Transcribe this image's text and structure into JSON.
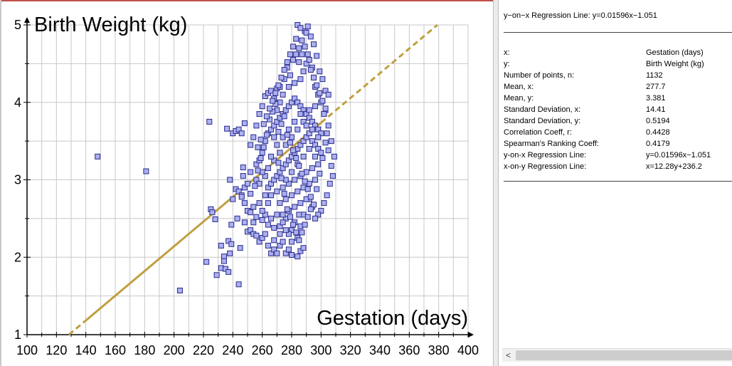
{
  "chart_data": {
    "type": "scatter",
    "xlabel": "Gestation (days)",
    "ylabel": "Birth Weight (kg)",
    "xlim": [
      100,
      400
    ],
    "ylim": [
      1,
      5
    ],
    "x_ticks": [
      "100",
      "120",
      "140",
      "160",
      "180",
      "200",
      "220",
      "240",
      "260",
      "280",
      "300",
      "320",
      "340",
      "360",
      "380",
      "400"
    ],
    "y_ticks": [
      "1",
      "2",
      "3",
      "4",
      "5"
    ],
    "grid": true,
    "marker_color": "#aab0f0",
    "marker_edge": "#2a2a8a",
    "line_color": "#bfa040",
    "regression": {
      "slope": 0.01596,
      "intercept": -1.051,
      "label": "y=0.01596x−1.051"
    },
    "points": [
      [
        148,
        3.3
      ],
      [
        181,
        3.11
      ],
      [
        204,
        1.57
      ],
      [
        224,
        3.75
      ],
      [
        225,
        2.62
      ],
      [
        226,
        2.58
      ],
      [
        222,
        1.94
      ],
      [
        228,
        2.49
      ],
      [
        229,
        1.77
      ],
      [
        232,
        1.86
      ],
      [
        234,
        2.01
      ],
      [
        232,
        2.15
      ],
      [
        235,
        1.85
      ],
      [
        237,
        1.81
      ],
      [
        237,
        2.21
      ],
      [
        239,
        2.17
      ],
      [
        238,
        2.05
      ],
      [
        234,
        1.95
      ],
      [
        244,
        1.65
      ],
      [
        245,
        2.12
      ],
      [
        236,
        3.66
      ],
      [
        240,
        3.6
      ],
      [
        242,
        3.63
      ],
      [
        244,
        3.65
      ],
      [
        246,
        3.6
      ],
      [
        248,
        3.73
      ],
      [
        247,
        3.16
      ],
      [
        247,
        3.05
      ],
      [
        238,
        3.0
      ],
      [
        240,
        2.75
      ],
      [
        242,
        2.88
      ],
      [
        244,
        2.85
      ],
      [
        246,
        2.8
      ],
      [
        248,
        2.9
      ],
      [
        250,
        2.95
      ],
      [
        252,
        3.1
      ],
      [
        239,
        2.42
      ],
      [
        243,
        2.5
      ],
      [
        248,
        2.45
      ],
      [
        250,
        2.33
      ],
      [
        252,
        2.35
      ],
      [
        254,
        2.3
      ],
      [
        256,
        2.28
      ],
      [
        254,
        2.45
      ],
      [
        258,
        2.2
      ],
      [
        260,
        2.25
      ],
      [
        262,
        2.3
      ],
      [
        264,
        2.15
      ],
      [
        266,
        2.05
      ],
      [
        268,
        2.1
      ],
      [
        270,
        2.05
      ],
      [
        272,
        2.15
      ],
      [
        274,
        2.2
      ],
      [
        276,
        2.05
      ],
      [
        278,
        2.1
      ],
      [
        280,
        2.03
      ],
      [
        284,
        2.01
      ],
      [
        286,
        2.08
      ],
      [
        288,
        2.12
      ],
      [
        268,
        2.22
      ],
      [
        272,
        2.4
      ],
      [
        276,
        2.5
      ],
      [
        280,
        2.35
      ],
      [
        284,
        2.25
      ],
      [
        286,
        2.4
      ],
      [
        288,
        2.55
      ],
      [
        262,
        2.55
      ],
      [
        258,
        2.7
      ],
      [
        254,
        2.65
      ],
      [
        250,
        2.6
      ],
      [
        252,
        3.45
      ],
      [
        254,
        3.55
      ],
      [
        256,
        3.7
      ],
      [
        258,
        3.85
      ],
      [
        260,
        3.95
      ],
      [
        262,
        4.08
      ],
      [
        264,
        4.12
      ],
      [
        266,
        4.15
      ],
      [
        268,
        4.05
      ],
      [
        270,
        4.18
      ],
      [
        272,
        4.2
      ],
      [
        275,
        4.3
      ],
      [
        277,
        4.45
      ],
      [
        279,
        4.35
      ],
      [
        281,
        4.55
      ],
      [
        283,
        4.62
      ],
      [
        285,
        4.7
      ],
      [
        287,
        4.8
      ],
      [
        289,
        4.92
      ],
      [
        291,
        4.98
      ],
      [
        284,
        5.0
      ],
      [
        286,
        4.96
      ],
      [
        290,
        4.9
      ],
      [
        293,
        4.85
      ],
      [
        295,
        4.75
      ],
      [
        297,
        4.6
      ],
      [
        299,
        4.4
      ],
      [
        301,
        4.3
      ],
      [
        303,
        4.15
      ],
      [
        305,
        4.1
      ],
      [
        303,
        3.9
      ],
      [
        305,
        3.7
      ],
      [
        307,
        3.5
      ],
      [
        309,
        3.3
      ],
      [
        308,
        3.05
      ],
      [
        306,
        2.95
      ],
      [
        304,
        2.8
      ],
      [
        302,
        2.7
      ],
      [
        300,
        2.6
      ],
      [
        298,
        2.55
      ],
      [
        296,
        2.5
      ],
      [
        294,
        2.65
      ],
      [
        292,
        2.75
      ],
      [
        256,
        3.2
      ],
      [
        258,
        3.25
      ],
      [
        260,
        3.35
      ],
      [
        262,
        3.5
      ],
      [
        264,
        3.6
      ],
      [
        266,
        3.65
      ],
      [
        268,
        3.7
      ],
      [
        270,
        3.75
      ],
      [
        272,
        3.8
      ],
      [
        274,
        3.85
      ],
      [
        276,
        3.9
      ],
      [
        278,
        3.95
      ],
      [
        280,
        4.0
      ],
      [
        282,
        4.05
      ],
      [
        284,
        4.0
      ],
      [
        286,
        3.95
      ],
      [
        288,
        3.9
      ],
      [
        290,
        3.85
      ],
      [
        292,
        3.8
      ],
      [
        294,
        3.75
      ],
      [
        296,
        3.7
      ],
      [
        298,
        3.65
      ],
      [
        300,
        3.6
      ],
      [
        264,
        2.9
      ],
      [
        266,
        2.95
      ],
      [
        268,
        3.0
      ],
      [
        270,
        3.05
      ],
      [
        272,
        3.1
      ],
      [
        274,
        3.15
      ],
      [
        276,
        3.2
      ],
      [
        278,
        3.25
      ],
      [
        280,
        3.3
      ],
      [
        282,
        3.35
      ],
      [
        284,
        3.4
      ],
      [
        286,
        3.45
      ],
      [
        288,
        3.5
      ],
      [
        290,
        3.55
      ],
      [
        292,
        3.6
      ],
      [
        294,
        3.5
      ],
      [
        296,
        3.45
      ],
      [
        298,
        3.4
      ],
      [
        300,
        3.35
      ],
      [
        266,
        2.8
      ],
      [
        270,
        2.85
      ],
      [
        274,
        2.9
      ],
      [
        278,
        2.95
      ],
      [
        282,
        3.0
      ],
      [
        286,
        3.05
      ],
      [
        290,
        3.1
      ],
      [
        294,
        3.15
      ],
      [
        298,
        3.2
      ],
      [
        262,
        3.05
      ],
      [
        264,
        3.15
      ],
      [
        268,
        3.25
      ],
      [
        272,
        3.35
      ],
      [
        276,
        3.45
      ],
      [
        280,
        3.55
      ],
      [
        284,
        3.65
      ],
      [
        288,
        3.75
      ],
      [
        292,
        3.9
      ],
      [
        296,
        3.95
      ],
      [
        270,
        3.45
      ],
      [
        274,
        3.55
      ],
      [
        278,
        3.65
      ],
      [
        282,
        3.75
      ],
      [
        286,
        3.85
      ],
      [
        290,
        3.7
      ],
      [
        294,
        3.65
      ],
      [
        298,
        3.55
      ],
      [
        276,
        3.0
      ],
      [
        280,
        3.1
      ],
      [
        284,
        3.2
      ],
      [
        288,
        3.3
      ],
      [
        292,
        3.4
      ],
      [
        296,
        3.3
      ],
      [
        272,
        2.7
      ],
      [
        276,
        2.75
      ],
      [
        280,
        2.8
      ],
      [
        284,
        2.85
      ],
      [
        288,
        2.9
      ],
      [
        292,
        2.95
      ],
      [
        296,
        3.0
      ],
      [
        278,
        2.6
      ],
      [
        282,
        2.65
      ],
      [
        286,
        2.7
      ],
      [
        290,
        2.75
      ],
      [
        274,
        2.55
      ],
      [
        266,
        3.3
      ],
      [
        268,
        3.55
      ],
      [
        270,
        3.9
      ],
      [
        272,
        4.0
      ],
      [
        274,
        4.1
      ],
      [
        278,
        4.2
      ],
      [
        282,
        4.25
      ],
      [
        286,
        4.3
      ],
      [
        288,
        4.4
      ],
      [
        290,
        4.5
      ],
      [
        292,
        4.55
      ],
      [
        294,
        4.45
      ],
      [
        296,
        4.2
      ],
      [
        298,
        4.1
      ],
      [
        300,
        4.0
      ],
      [
        302,
        3.85
      ],
      [
        304,
        3.6
      ],
      [
        256,
        3.0
      ],
      [
        258,
        2.95
      ],
      [
        260,
        3.1
      ],
      [
        262,
        2.8
      ],
      [
        264,
        2.7
      ],
      [
        260,
        2.6
      ],
      [
        266,
        2.5
      ],
      [
        270,
        2.55
      ],
      [
        274,
        2.45
      ],
      [
        278,
        2.3
      ],
      [
        282,
        2.45
      ],
      [
        285,
        2.55
      ],
      [
        280,
        2.2
      ],
      [
        276,
        2.35
      ],
      [
        272,
        2.3
      ],
      [
        268,
        2.38
      ],
      [
        264,
        2.42
      ],
      [
        260,
        2.48
      ],
      [
        256,
        2.52
      ],
      [
        252,
        2.58
      ],
      [
        248,
        2.7
      ],
      [
        246,
        2.78
      ],
      [
        252,
        2.82
      ],
      [
        255,
        2.92
      ],
      [
        257,
        3.12
      ],
      [
        259,
        3.28
      ],
      [
        261,
        3.42
      ],
      [
        263,
        3.58
      ],
      [
        265,
        3.78
      ],
      [
        267,
        3.88
      ],
      [
        269,
        3.98
      ],
      [
        271,
        3.62
      ],
      [
        273,
        3.72
      ],
      [
        275,
        3.82
      ],
      [
        277,
        3.58
      ],
      [
        279,
        3.48
      ],
      [
        281,
        3.38
      ],
      [
        283,
        3.28
      ],
      [
        285,
        3.18
      ],
      [
        287,
        3.08
      ],
      [
        289,
        2.98
      ],
      [
        291,
        2.88
      ],
      [
        293,
        2.78
      ],
      [
        295,
        2.68
      ],
      [
        297,
        2.88
      ],
      [
        299,
        3.08
      ],
      [
        301,
        3.28
      ],
      [
        303,
        3.48
      ],
      [
        305,
        3.38
      ],
      [
        307,
        3.18
      ],
      [
        261,
        3.72
      ],
      [
        263,
        3.82
      ],
      [
        265,
        3.92
      ],
      [
        267,
        4.02
      ],
      [
        269,
        4.12
      ],
      [
        271,
        4.22
      ],
      [
        273,
        4.32
      ],
      [
        275,
        4.42
      ],
      [
        277,
        4.52
      ],
      [
        279,
        4.62
      ],
      [
        281,
        4.72
      ],
      [
        283,
        4.82
      ],
      [
        285,
        4.52
      ],
      [
        287,
        4.62
      ],
      [
        289,
        4.72
      ],
      [
        291,
        4.62
      ],
      [
        293,
        4.42
      ],
      [
        295,
        4.32
      ],
      [
        297,
        4.22
      ],
      [
        299,
        4.12
      ],
      [
        301,
        4.02
      ],
      [
        303,
        3.92
      ],
      [
        257,
        3.42
      ],
      [
        259,
        3.52
      ],
      [
        271,
        3.22
      ],
      [
        273,
        3.02
      ],
      [
        275,
        2.82
      ],
      [
        277,
        2.62
      ],
      [
        279,
        2.52
      ],
      [
        281,
        2.42
      ],
      [
        283,
        2.32
      ],
      [
        285,
        2.22
      ],
      [
        287,
        2.32
      ],
      [
        289,
        2.42
      ],
      [
        291,
        2.52
      ],
      [
        293,
        2.62
      ]
    ]
  },
  "stats": {
    "header": "y−on−x Regression Line: y=0.01596x−1.051",
    "rows": [
      {
        "label": "x:",
        "value": "Gestation (days)"
      },
      {
        "label": "y:",
        "value": "Birth Weight (kg)"
      },
      {
        "label": "Number of points, n:",
        "value": "1132"
      },
      {
        "label": "Mean, x:",
        "value": "277.7"
      },
      {
        "label": "Mean, y:",
        "value": "3.381"
      },
      {
        "label": "Standard Deviation, x:",
        "value": "14.41"
      },
      {
        "label": "Standard Deviation, y:",
        "value": "0.5194"
      },
      {
        "label": "Correlation Coeff, r:",
        "value": "0.4428"
      },
      {
        "label": "Spearman's Ranking Coeff:",
        "value": "0.4179"
      },
      {
        "label": "y-on-x Regression Line:",
        "value": "y=0.01596x−1.051"
      },
      {
        "label": "x-on-y Regression Line:",
        "value": "x=12.28y+236.2"
      }
    ]
  },
  "scrollbar": {
    "left_arrow": "<"
  }
}
